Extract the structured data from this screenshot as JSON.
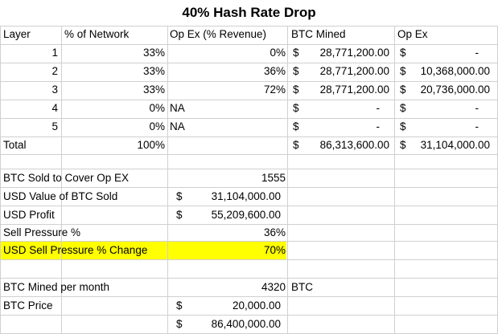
{
  "sheet": {
    "title": "40% Hash Rate Drop",
    "headers": [
      "Layer",
      "% of Network",
      "Op Ex (% Revenue)",
      "BTC Mined",
      "Op Ex"
    ],
    "rows": [
      {
        "layer": "1",
        "pct": "33%",
        "opex_pct": "0%",
        "opex_na": "",
        "mined_sym": "$",
        "mined_val": "28,771,200.00",
        "opex_sym": "$",
        "opex_val": "-"
      },
      {
        "layer": "2",
        "pct": "33%",
        "opex_pct": "36%",
        "opex_na": "",
        "mined_sym": "$",
        "mined_val": "28,771,200.00",
        "opex_sym": "$",
        "opex_val": "10,368,000.00"
      },
      {
        "layer": "3",
        "pct": "33%",
        "opex_pct": "72%",
        "opex_na": "",
        "mined_sym": "$",
        "mined_val": "28,771,200.00",
        "opex_sym": "$",
        "opex_val": "20,736,000.00"
      },
      {
        "layer": "4",
        "pct": "0%",
        "opex_pct": "",
        "opex_na": "NA",
        "mined_sym": "$",
        "mined_val": "-",
        "opex_sym": "$",
        "opex_val": "-"
      },
      {
        "layer": "5",
        "pct": "0%",
        "opex_pct": "",
        "opex_na": "NA",
        "mined_sym": "$",
        "mined_val": "-",
        "opex_sym": "$",
        "opex_val": "-"
      }
    ],
    "total": {
      "label": "Total",
      "pct": "100%",
      "mined_sym": "$",
      "mined_val": "86,313,600.00",
      "opex_sym": "$",
      "opex_val": "31,104,000.00"
    },
    "summary": [
      {
        "label": "BTC Sold to Cover Op EX",
        "sym": "",
        "value": "1555"
      },
      {
        "label": "USD Value of BTC Sold",
        "sym": "$",
        "value": "31,104,000.00"
      },
      {
        "label": "USD Profit",
        "sym": "$",
        "value": "55,209,600.00"
      },
      {
        "label": "Sell Pressure %",
        "sym": "",
        "value": "36%"
      },
      {
        "label": "USD Sell Pressure % Change",
        "sym": "",
        "value": "70%"
      }
    ],
    "monthly": {
      "label": "BTC Mined per month",
      "value": "4320",
      "unit": "BTC"
    },
    "price": {
      "label": "BTC Price",
      "sym": "$",
      "value": "20,000.00"
    },
    "product": {
      "sym": "$",
      "value": "86,400,000.00"
    },
    "highlight_color": "#ffff00"
  }
}
